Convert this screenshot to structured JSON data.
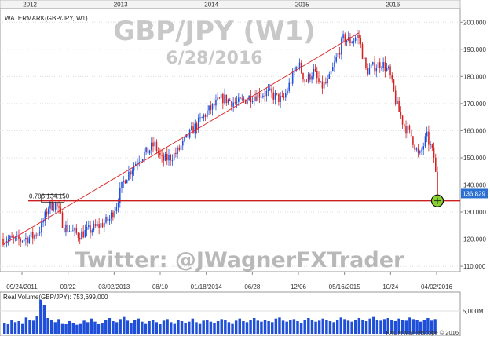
{
  "chart_data": [
    {
      "type": "candlestick",
      "title": "WATERMARK(GBP/JPY, W1)",
      "watermark": {
        "symbol": "GBP/JPY (W1)",
        "date": "6/28/2016",
        "twitter": "Twitter: @JWagnerFXTrader"
      },
      "year_markers": [
        "2012",
        "2013",
        "2014",
        "2015",
        "2016"
      ],
      "x_tick_labels": [
        "09/24/2011",
        "09/22",
        "03/02/2013",
        "08/10",
        "01/18/2014",
        "06/28",
        "12/06",
        "05/16/2015",
        "10/24",
        "04/02/2016"
      ],
      "y_tick_labels": [
        "110.000",
        "120.000",
        "130.000",
        "140.000",
        "150.000",
        "160.000",
        "170.000",
        "180.000",
        "190.000",
        "200.000"
      ],
      "ylim": [
        108,
        205
      ],
      "grid": true,
      "current_price": "136.829",
      "fib_label": "0.786 134.150",
      "fib_level": 134.15,
      "trendline": {
        "from": {
          "x": "09/2011",
          "y": 118
        },
        "to": {
          "x": "08/2015",
          "y": 196
        }
      },
      "price_path": [
        {
          "x": "09/2011",
          "y": 120
        },
        {
          "x": "11/2011",
          "y": 119.5
        },
        {
          "x": "01/2012",
          "y": 121
        },
        {
          "x": "02/2012",
          "y": 124
        },
        {
          "x": "03/2012",
          "y": 132
        },
        {
          "x": "04/2012",
          "y": 133
        },
        {
          "x": "05/2012",
          "y": 125
        },
        {
          "x": "06/2012",
          "y": 123
        },
        {
          "x": "07/2012",
          "y": 121.5
        },
        {
          "x": "09/2012",
          "y": 124
        },
        {
          "x": "11/2012",
          "y": 127
        },
        {
          "x": "12/2012",
          "y": 133
        },
        {
          "x": "01/2013",
          "y": 142
        },
        {
          "x": "02/2013",
          "y": 146
        },
        {
          "x": "03/2013",
          "y": 150
        },
        {
          "x": "04/2013",
          "y": 152
        },
        {
          "x": "05/2013",
          "y": 155
        },
        {
          "x": "06/2013",
          "y": 149
        },
        {
          "x": "07/2013",
          "y": 150
        },
        {
          "x": "08/2013",
          "y": 152
        },
        {
          "x": "10/2013",
          "y": 160
        },
        {
          "x": "12/2013",
          "y": 167
        },
        {
          "x": "02/2014",
          "y": 172
        },
        {
          "x": "04/2014",
          "y": 170
        },
        {
          "x": "06/2014",
          "y": 173
        },
        {
          "x": "08/2014",
          "y": 174
        },
        {
          "x": "10/2014",
          "y": 171
        },
        {
          "x": "12/2014",
          "y": 185
        },
        {
          "x": "01/2015",
          "y": 178
        },
        {
          "x": "02/2015",
          "y": 182
        },
        {
          "x": "03/2015",
          "y": 176
        },
        {
          "x": "04/2015",
          "y": 178
        },
        {
          "x": "05/2015",
          "y": 186
        },
        {
          "x": "06/2015",
          "y": 194
        },
        {
          "x": "07/2015",
          "y": 193
        },
        {
          "x": "08/2015",
          "y": 195
        },
        {
          "x": "09/2015",
          "y": 182
        },
        {
          "x": "11/2015",
          "y": 185
        },
        {
          "x": "12/2015",
          "y": 182
        },
        {
          "x": "01/2016",
          "y": 170
        },
        {
          "x": "02/2016",
          "y": 162
        },
        {
          "x": "03/2016",
          "y": 158
        },
        {
          "x": "04/2016",
          "y": 150
        },
        {
          "x": "05/2016",
          "y": 158
        },
        {
          "x": "06/2016",
          "y": 150
        },
        {
          "x": "06/28/2016",
          "y": 137
        }
      ]
    },
    {
      "type": "bar",
      "title": "Real Volume(GBP/JPY): 753,699,000",
      "y_tick_labels": [
        "5,000M"
      ],
      "credit": "FXCM Marketscope © 2016",
      "series": [
        {
          "name": "Real Volume",
          "values": [
            2.1,
            1.9,
            2.6,
            2.2,
            2.4,
            2.0,
            3.1,
            2.7,
            2.5,
            3.3,
            6.5,
            5.4,
            3.0,
            2.6,
            2.2,
            2.8,
            2.0,
            1.8,
            2.4,
            2.1,
            1.7,
            2.0,
            2.5,
            2.2,
            2.9,
            2.3,
            1.9,
            2.1,
            2.6,
            3.0,
            2.4,
            2.2,
            2.8,
            3.2,
            2.5,
            2.1,
            2.7,
            2.9,
            2.3,
            2.0,
            2.4,
            2.6,
            2.2,
            1.9,
            2.5,
            2.8,
            2.2,
            2.0,
            2.6,
            2.4,
            2.1,
            2.3,
            2.9,
            2.2,
            2.0,
            2.5,
            2.7,
            2.3,
            2.1,
            2.4,
            2.8,
            2.6,
            2.2,
            2.0,
            2.5,
            2.9,
            2.4,
            2.2,
            2.6,
            3.0,
            2.5,
            2.3,
            2.7,
            2.4,
            2.2,
            2.9,
            3.1,
            2.5,
            2.3,
            2.6,
            2.8,
            2.4,
            2.1,
            2.7,
            3.0,
            2.6,
            2.3,
            2.5,
            2.9,
            2.7,
            2.4,
            2.2,
            2.6,
            3.1,
            2.8,
            2.5,
            2.3,
            2.7,
            3.0,
            2.6,
            2.4,
            2.9,
            3.2,
            2.7,
            2.5,
            2.8,
            3.0,
            2.6,
            2.4,
            2.9,
            2.7,
            2.5,
            3.1,
            2.8,
            2.6,
            2.3,
            2.7,
            3.0,
            2.5,
            2.8
          ]
        }
      ]
    }
  ],
  "colors": {
    "up": "#1f4fd8",
    "down": "#d42020",
    "trend": "#e03030",
    "fib": "#cc1f1f",
    "volume": "#1f4fd8",
    "axis_text": "#333333",
    "grid": "#dcdcdc",
    "marker": "#e8a020"
  }
}
